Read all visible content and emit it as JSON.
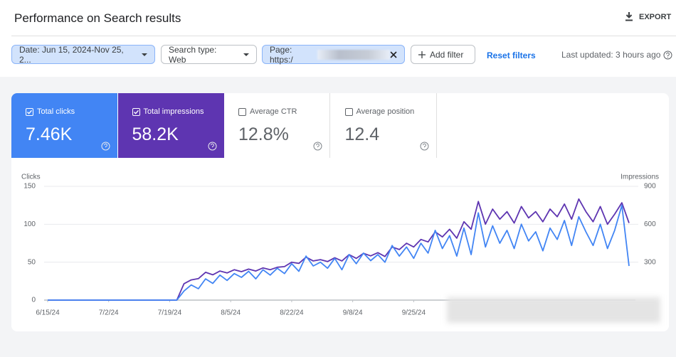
{
  "header": {
    "title": "Performance on Search results",
    "export": "EXPORT"
  },
  "filters": {
    "date": "Date: Jun 15, 2024-Nov 25, 2...",
    "search_type": "Search type: Web",
    "page": "Page: https:/",
    "add_filter": "Add filter",
    "reset": "Reset filters",
    "last_updated": "Last updated: 3 hours ago"
  },
  "metrics": [
    {
      "label": "Total clicks",
      "value": "7.46K"
    },
    {
      "label": "Total impressions",
      "value": "58.2K"
    },
    {
      "label": "Average CTR",
      "value": "12.8%"
    },
    {
      "label": "Average position",
      "value": "12.4"
    }
  ],
  "chart_data": {
    "type": "line",
    "y_label": "Clicks",
    "y2_label": "Impressions",
    "xlim": [
      0,
      163
    ],
    "xticks": [
      {
        "value": 0,
        "label": "6/15/24"
      },
      {
        "value": 17,
        "label": "7/2/24"
      },
      {
        "value": 34,
        "label": "7/19/24"
      },
      {
        "value": 51,
        "label": "8/5/24"
      },
      {
        "value": 68,
        "label": "8/22/24"
      },
      {
        "value": 85,
        "label": "9/8/24"
      },
      {
        "value": 102,
        "label": "9/25/24"
      }
    ],
    "ylim": [
      0,
      150
    ],
    "yticks": [
      0,
      50,
      100,
      150
    ],
    "y2lim": [
      0,
      900
    ],
    "y2ticks": [
      300,
      600,
      900
    ],
    "grid": true,
    "x": [
      0,
      2,
      4,
      6,
      8,
      10,
      12,
      14,
      16,
      18,
      20,
      22,
      24,
      26,
      28,
      30,
      32,
      34,
      36,
      38,
      40,
      42,
      44,
      46,
      48,
      50,
      52,
      54,
      56,
      58,
      60,
      62,
      64,
      66,
      68,
      70,
      72,
      74,
      76,
      78,
      80,
      82,
      84,
      86,
      88,
      90,
      92,
      94,
      96,
      98,
      100,
      102,
      104,
      106,
      108,
      110,
      112,
      114,
      116,
      118,
      120,
      122,
      124,
      126,
      128,
      130,
      132,
      134,
      136,
      138,
      140,
      142,
      144,
      146,
      148,
      150,
      152,
      154,
      156,
      158,
      160,
      162
    ],
    "series": [
      {
        "color": "#5e35b1",
        "axis": "y2",
        "values": [
          0,
          0,
          0,
          0,
          0,
          0,
          0,
          0,
          0,
          0,
          0,
          0,
          0,
          0,
          0,
          0,
          0,
          0,
          0,
          130,
          160,
          170,
          220,
          200,
          230,
          215,
          240,
          225,
          245,
          230,
          255,
          240,
          260,
          265,
          300,
          290,
          340,
          310,
          320,
          305,
          335,
          310,
          360,
          330,
          370,
          350,
          375,
          345,
          420,
          400,
          450,
          420,
          480,
          460,
          540,
          500,
          560,
          490,
          620,
          560,
          780,
          600,
          720,
          640,
          700,
          610,
          740,
          650,
          700,
          620,
          720,
          660,
          760,
          640,
          800,
          700,
          620,
          740,
          600,
          680,
          770,
          610
        ]
      },
      {
        "color": "#4285f4",
        "values": [
          0,
          0,
          0,
          0,
          0,
          0,
          0,
          0,
          0,
          0,
          0,
          0,
          0,
          0,
          0,
          0,
          0,
          0,
          0,
          12,
          20,
          15,
          28,
          22,
          33,
          26,
          35,
          30,
          38,
          28,
          40,
          33,
          42,
          35,
          48,
          38,
          58,
          45,
          50,
          42,
          55,
          40,
          60,
          48,
          62,
          52,
          60,
          50,
          72,
          58,
          70,
          55,
          75,
          62,
          92,
          68,
          85,
          58,
          95,
          60,
          115,
          70,
          98,
          75,
          92,
          68,
          100,
          78,
          90,
          65,
          95,
          80,
          105,
          72,
          110,
          90,
          72,
          100,
          68,
          92,
          125,
          45
        ]
      }
    ]
  }
}
